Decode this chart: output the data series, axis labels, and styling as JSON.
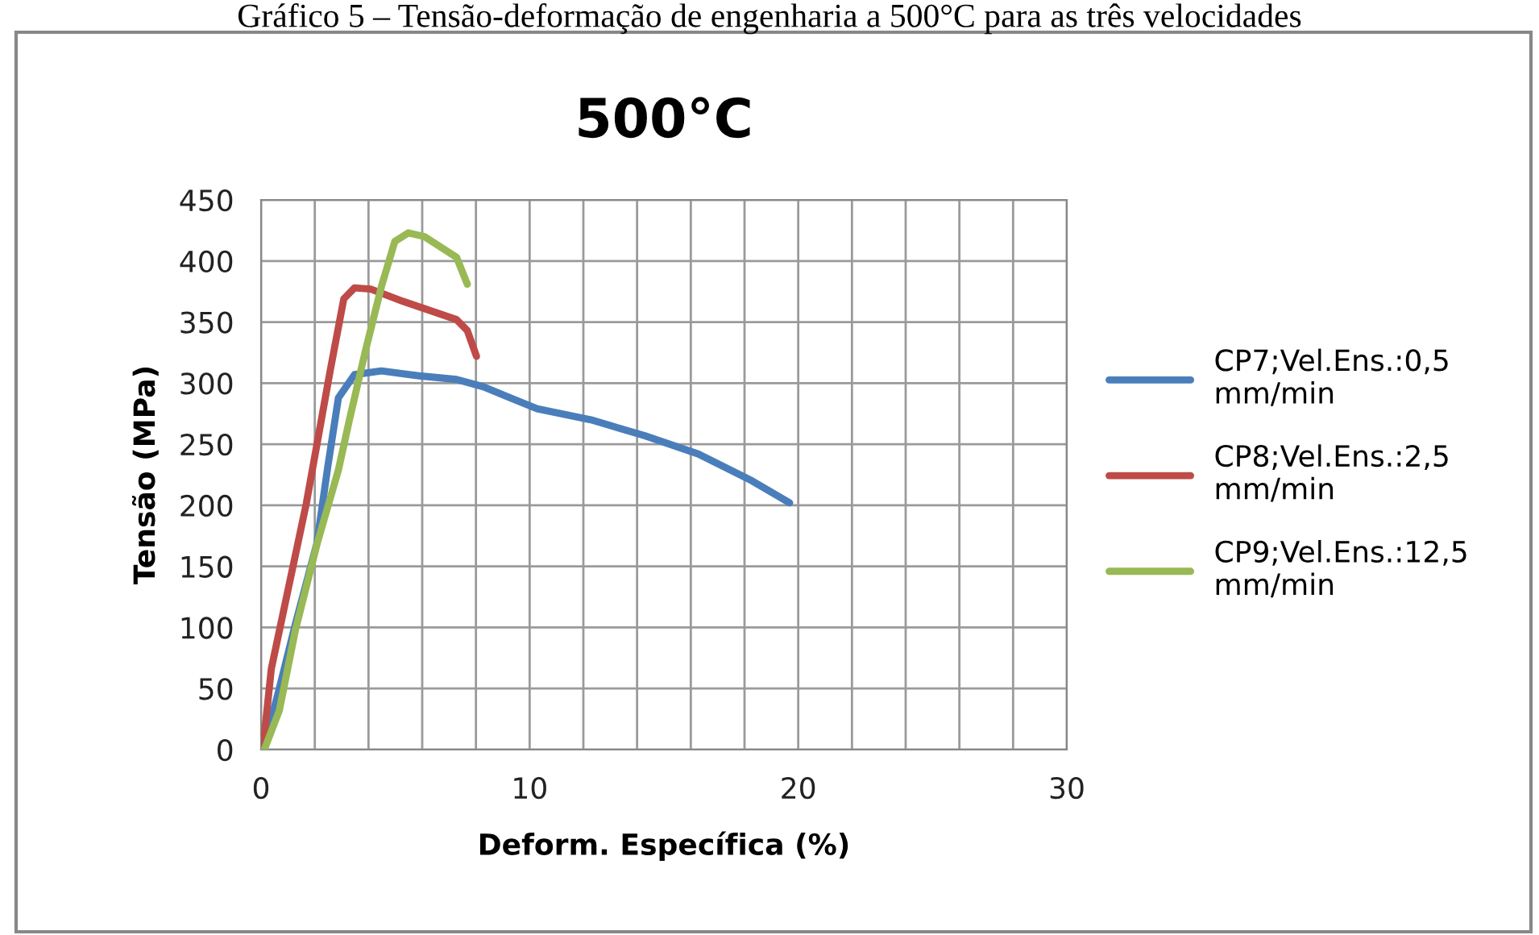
{
  "chart_data": {
    "type": "line",
    "title": "500°C",
    "xlabel": "Deform. Específica (%)",
    "ylabel": "Tensão (MPa)",
    "annotations": [
      "Gráfico 5 – Tensão-deformação de engenharia a 500°C para as três velocidades"
    ],
    "xlim": [
      0,
      30
    ],
    "ylim": [
      0,
      450
    ],
    "xticks": [
      0,
      {
        "value": 2,
        "label": null
      },
      {
        "value": 4,
        "label": null
      },
      {
        "value": 6,
        "label": null
      },
      {
        "value": 8,
        "label": null
      },
      10,
      {
        "value": 12,
        "label": null
      },
      {
        "value": 14,
        "label": null
      },
      {
        "value": 16,
        "label": null
      },
      {
        "value": 18,
        "label": null
      },
      20,
      {
        "value": 22,
        "label": null
      },
      {
        "value": 24,
        "label": null
      },
      {
        "value": 26,
        "label": null
      },
      {
        "value": 28,
        "label": null
      },
      30
    ],
    "yticks": [
      0,
      50,
      100,
      150,
      200,
      250,
      300,
      350,
      400,
      450
    ],
    "grid": true,
    "legend": "right",
    "marker": "none",
    "line_style": "solid",
    "series": [
      {
        "name": "CP7;Vel.Ens.:0,5 mm/min",
        "color": "#4a7ebb",
        "x": [
          0.08,
          0.68,
          1.28,
          2.08,
          2.48,
          2.88,
          3.48,
          4.48,
          5.88,
          7.28,
          8.28,
          9.28,
          10.28,
          12.28,
          14.28,
          16.28,
          18.28,
          19.68
        ],
        "values": [
          0,
          50,
          103,
          169,
          231,
          288,
          307,
          310,
          306,
          303,
          297,
          288,
          279,
          270,
          257,
          242,
          220,
          202
        ]
      },
      {
        "name": "CP8;Vel.Ens.:2,5 mm/min",
        "color": "#be4b48",
        "x": [
          0.08,
          0.38,
          1.68,
          2.58,
          3.08,
          3.48,
          4.08,
          5.28,
          7.28,
          7.68,
          8.02
        ],
        "values": [
          3,
          66,
          201,
          311,
          369,
          378,
          377,
          367,
          352,
          343,
          322
        ]
      },
      {
        "name": "CP9;Vel.Ens.:12,5 mm/min",
        "color": "#98b954",
        "x": [
          0.12,
          0.68,
          1.28,
          2.08,
          2.88,
          3.28,
          3.88,
          4.48,
          4.98,
          5.48,
          6.08,
          7.28,
          7.68
        ],
        "values": [
          0,
          32,
          98,
          168,
          229,
          269,
          326,
          379,
          416,
          423,
          420,
          403,
          381
        ]
      }
    ]
  }
}
